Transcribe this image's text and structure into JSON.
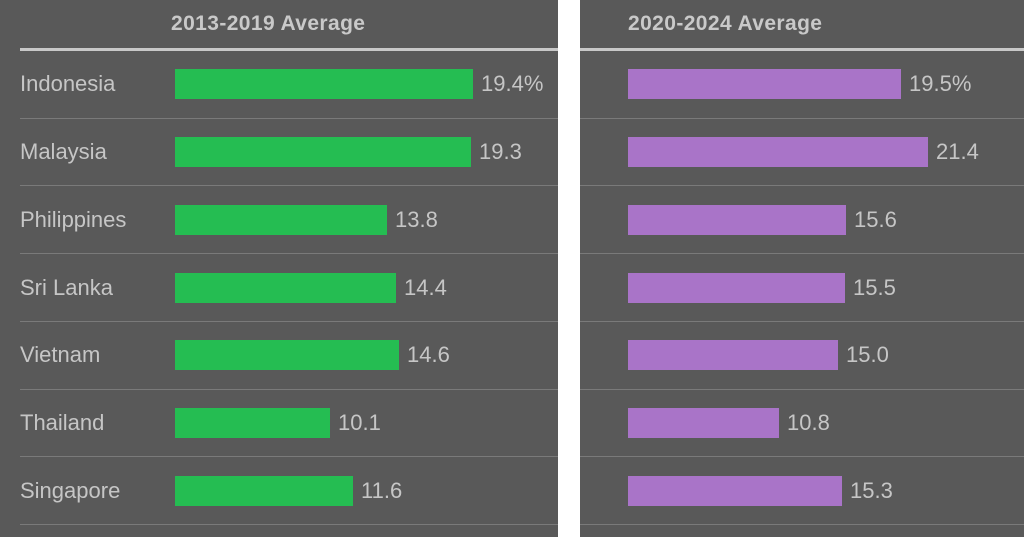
{
  "chart_data": {
    "type": "bar",
    "orientation": "horizontal",
    "categories": [
      "Indonesia",
      "Malaysia",
      "Philippines",
      "Sri Lanka",
      "Vietnam",
      "Thailand",
      "Singapore"
    ],
    "series": [
      {
        "name": "2013-2019 Average",
        "values": [
          19.4,
          19.3,
          13.8,
          14.4,
          14.6,
          10.1,
          11.6
        ],
        "value_labels": [
          "19.4%",
          "19.3",
          "13.8",
          "14.4",
          "14.6",
          "10.1",
          "11.6"
        ],
        "color": "#25bd52"
      },
      {
        "name": "2020-2024 Average",
        "values": [
          19.5,
          21.4,
          15.6,
          15.5,
          15.0,
          10.8,
          15.3
        ],
        "value_labels": [
          "19.5%",
          "21.4",
          "15.6",
          "15.5",
          "15.0",
          "10.8",
          "15.3"
        ],
        "color": "#a974c8"
      }
    ],
    "axis_max": 25,
    "title": "",
    "xlabel": "",
    "ylabel": "",
    "grid": "row-separators",
    "legend_position": "none"
  },
  "panels": [
    {
      "title": "2013-2019 Average"
    },
    {
      "title": "2020-2024 Average"
    }
  ],
  "colors": {
    "background": "#595959",
    "bar_left": "#25bd52",
    "bar_right": "#a974c8",
    "divider": "#ffffff",
    "header_rule": "#c8c8c8",
    "row_separator": "#7a7a7a",
    "text": "#c6c6c6"
  }
}
